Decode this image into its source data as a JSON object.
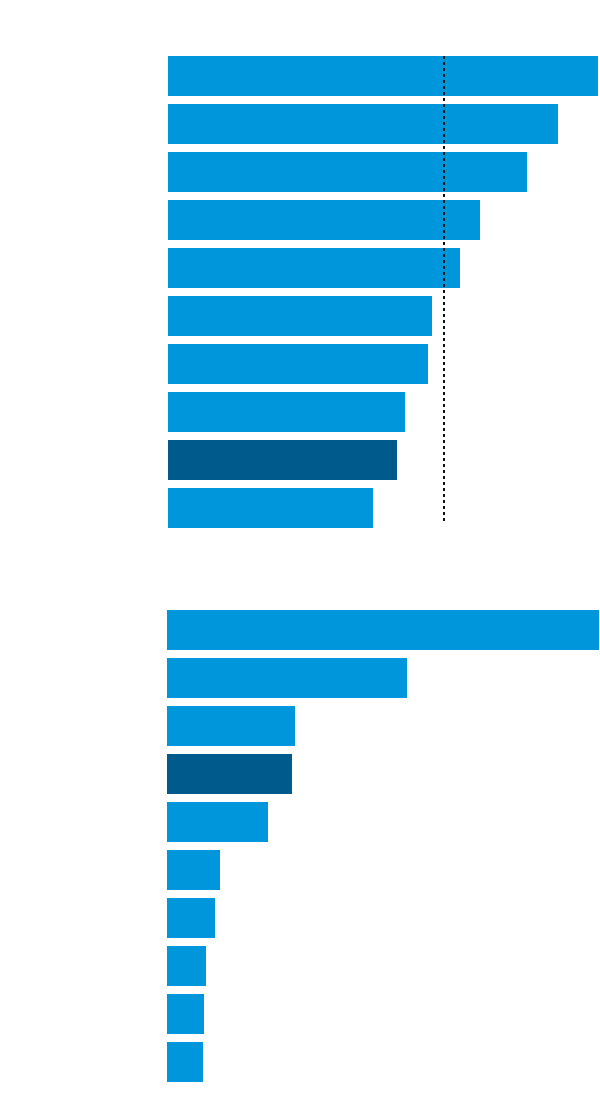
{
  "chart_data": [
    {
      "type": "bar",
      "orientation": "horizontal",
      "categories": [
        null,
        null,
        null,
        null,
        null,
        null,
        null,
        null,
        null,
        null
      ],
      "values": [
        430,
        390,
        359,
        312,
        292,
        264,
        260,
        237,
        229,
        205
      ],
      "colors": [
        "#0096dc",
        "#0096dc",
        "#0096dc",
        "#0096dc",
        "#0096dc",
        "#0096dc",
        "#0096dc",
        "#0096dc",
        "#005a8c",
        "#0096dc"
      ],
      "xlim": [
        0,
        430
      ],
      "reference_line": 276
    },
    {
      "type": "bar",
      "orientation": "horizontal",
      "categories": [
        null,
        null,
        null,
        null,
        null,
        null,
        null,
        null,
        null,
        null
      ],
      "values": [
        432,
        240,
        128,
        125,
        101,
        53,
        48,
        39,
        37,
        36
      ],
      "colors": [
        "#0096dc",
        "#0096dc",
        "#0096dc",
        "#005a8c",
        "#0096dc",
        "#0096dc",
        "#0096dc",
        "#0096dc",
        "#0096dc",
        "#0096dc"
      ],
      "xlim": [
        0,
        432
      ]
    }
  ]
}
